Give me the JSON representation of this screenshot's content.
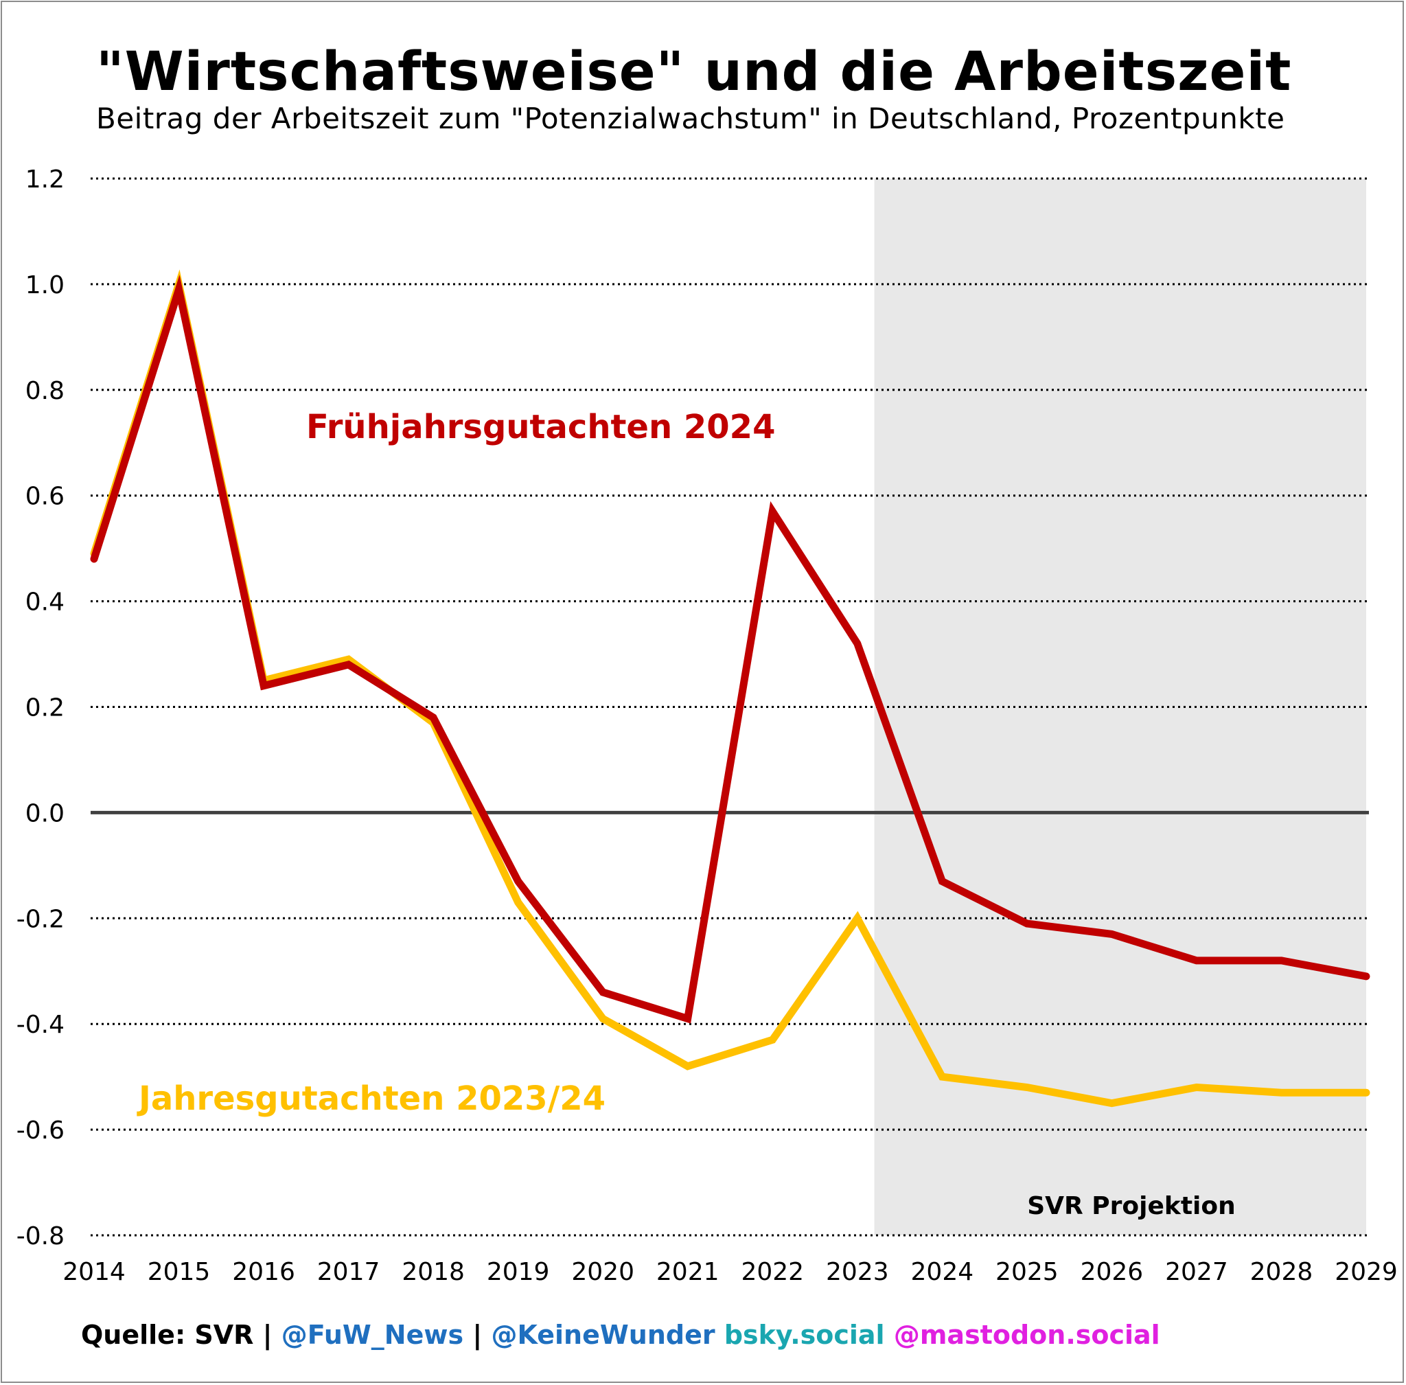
{
  "title": "\"Wirtschaftsweise\" und die Arbeitszeit",
  "subtitle": "Beitrag der Arbeitszeit zum \"Potenzialwachstum\" in Deutschland, Prozentpunkte",
  "footer": {
    "source": "Quelle: SVR | ",
    "handle1": "@FuW_News",
    "sep": " | ",
    "handle2": "@KeineWunder",
    "space": " ",
    "bsky": "bsky.social",
    "space2": " ",
    "mastodon": "@mastodon.social"
  },
  "colors": {
    "fruehjahr": "#c00000",
    "jahres": "#ffc000",
    "projection_bg": "#e8e8e8",
    "handle_blue": "#1f6fbf",
    "bsky_teal": "#1aa6b0",
    "mastodon_magenta": "#e020e0"
  },
  "chart_data": {
    "type": "line",
    "x": [
      "2014",
      "2015",
      "2016",
      "2017",
      "2018",
      "2019",
      "2020",
      "2021",
      "2022",
      "2023",
      "2024",
      "2025",
      "2026",
      "2027",
      "2028",
      "2029"
    ],
    "yticks": [
      "1.2",
      "1.0",
      "0.8",
      "0.6",
      "0.4",
      "0.2",
      "0.0",
      "-0.2",
      "-0.4",
      "-0.6",
      "-0.8"
    ],
    "ylim": [
      -0.8,
      1.2
    ],
    "grid": true,
    "series": [
      {
        "name": "Jahresgutachten 2023/24",
        "color": "#ffc000",
        "values": [
          0.49,
          1.0,
          0.25,
          0.29,
          0.17,
          -0.17,
          -0.39,
          -0.48,
          -0.43,
          -0.2,
          -0.5,
          -0.52,
          -0.55,
          -0.52,
          -0.53,
          -0.53
        ]
      },
      {
        "name": "Frühjahrsgutachten 2024",
        "color": "#c00000",
        "values": [
          0.48,
          0.99,
          0.24,
          0.28,
          0.18,
          -0.13,
          -0.34,
          -0.39,
          0.57,
          0.32,
          -0.13,
          -0.21,
          -0.23,
          -0.28,
          -0.28,
          -0.31
        ]
      }
    ],
    "projection": {
      "label": "SVR Projektion",
      "from_year": 2023.2,
      "to_year": 2029
    }
  }
}
